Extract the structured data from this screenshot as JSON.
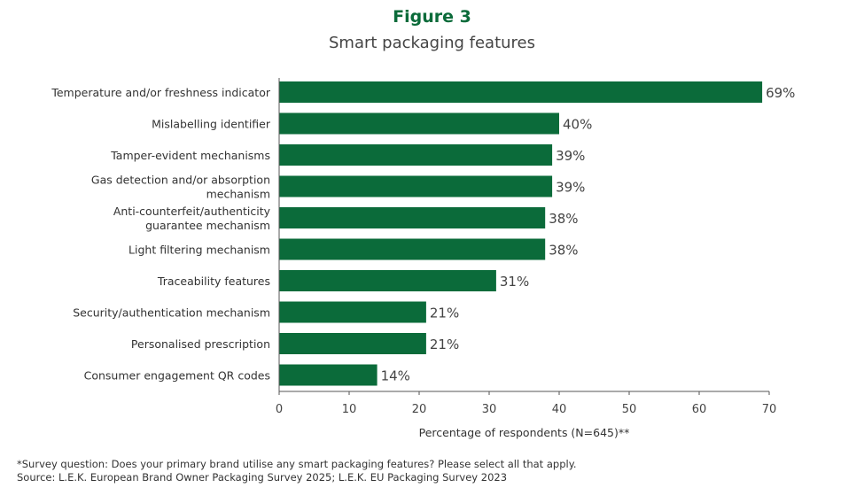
{
  "chart_data": {
    "type": "bar",
    "orientation": "horizontal",
    "title": "Figure 3",
    "subtitle": "Smart packaging features",
    "categories": [
      [
        "Temperature and/or freshness indicator"
      ],
      [
        "Mislabelling identifier"
      ],
      [
        "Tamper-evident mechanisms"
      ],
      [
        "Gas detection and/or absorption",
        "mechanism"
      ],
      [
        "Anti-counterfeit/authenticity",
        "guarantee mechanism"
      ],
      [
        "Light filtering mechanism"
      ],
      [
        "Traceability features"
      ],
      [
        "Security/authentication mechanism"
      ],
      [
        "Personalised prescription"
      ],
      [
        "Consumer engagement QR codes"
      ]
    ],
    "values": [
      69,
      40,
      39,
      39,
      38,
      38,
      31,
      21,
      21,
      14
    ],
    "data_labels": [
      "69%",
      "40%",
      "39%",
      "39%",
      "38%",
      "38%",
      "31%",
      "21%",
      "21%",
      "14%"
    ],
    "xlabel": "Percentage of respondents (N=645)**",
    "ylabel": "",
    "xlim": [
      0,
      70
    ],
    "xticks": [
      0,
      10,
      20,
      30,
      40,
      50,
      60,
      70
    ],
    "grid": false,
    "bar_color": "#0b6b3a",
    "title_color": "#0b6b3a"
  },
  "footnotes": [
    "*Survey question: Does your primary brand utilise any smart packaging features? Please select all that apply.",
    "Source: L.E.K. European Brand Owner Packaging Survey 2025; L.E.K. EU Packaging Survey 2023"
  ]
}
